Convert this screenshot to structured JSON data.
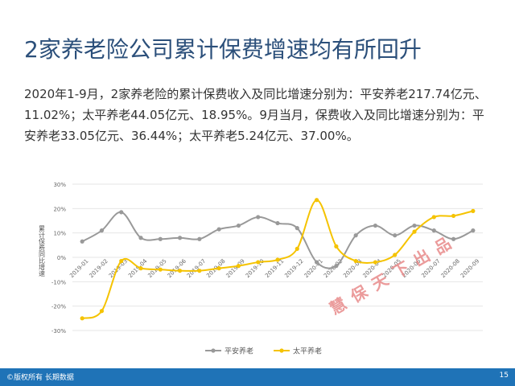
{
  "page": {
    "title": "2家养老险公司累计保费增速均有所回升",
    "body": "2020年1-9月，2家养老险的累计保费收入及同比增速分别为：平安养老217.74亿元、11.02%；太平养老44.05亿元、18.95%。9月当月，保费收入及同比增速分别为：平安养老33.05亿元、36.44%；太平养老5.24亿元、37.00%。",
    "footer_left": "©版权所有 长期数据",
    "page_number": "15",
    "stamp": "慧保天下出品"
  },
  "chart_data": {
    "type": "line",
    "ylabel": "累计保费同比增速",
    "ylim": [
      -30,
      30
    ],
    "yticks": [
      "30%",
      "20%",
      "10%",
      "0%",
      "-10%",
      "-20%",
      "-30%"
    ],
    "categories": [
      "2019-01",
      "2019-02",
      "2019-03",
      "2019-04",
      "2019-05",
      "2019-06",
      "2019-07",
      "2019-08",
      "2019-09",
      "2019-10",
      "2019-11",
      "2019-12",
      "2020-01",
      "2020-02",
      "2020-03",
      "2020-04",
      "2020-05",
      "2020-06",
      "2020-07",
      "2020-08",
      "2020-09"
    ],
    "series": [
      {
        "name": "平安养老",
        "color": "#999999",
        "values": [
          6.5,
          11,
          18.5,
          8,
          7.5,
          8,
          7.5,
          11.5,
          13,
          16.5,
          14,
          12,
          -2,
          -3.5,
          9,
          13,
          9,
          13,
          11,
          7.5,
          11
        ]
      },
      {
        "name": "太平养老",
        "color": "#f5c300",
        "values": [
          -25,
          -22,
          -1.5,
          -4.5,
          -5,
          -5.5,
          -5.5,
          -4.5,
          -3.5,
          -2,
          -1,
          3.5,
          23.5,
          4.5,
          -1.5,
          -2,
          1,
          10.5,
          16.5,
          17,
          19
        ]
      }
    ],
    "legend": "bottom",
    "grid": true
  }
}
